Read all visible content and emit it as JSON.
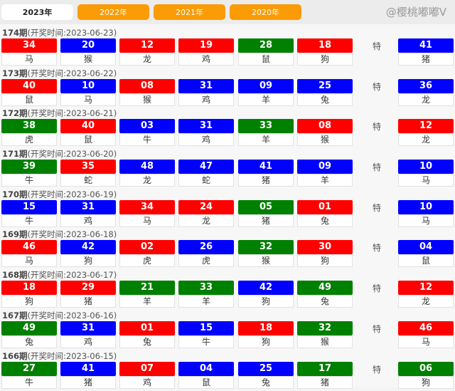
{
  "colors": {
    "red": "#ff0000",
    "blue": "#0000ff",
    "green": "#008000",
    "tab": "#fb9b05"
  },
  "tabs": [
    {
      "label": "2023年",
      "active": true
    },
    {
      "label": "2022年"
    },
    {
      "label": "2021年"
    },
    {
      "label": "2020年"
    }
  ],
  "special_label": "特",
  "watermark": "@樱桃嘟嘟V",
  "draws": [
    {
      "period": "174期",
      "time": "(开奖时间:2023-06-23)",
      "balls": [
        [
          "34",
          "red",
          "马"
        ],
        [
          "20",
          "blue",
          "猴"
        ],
        [
          "12",
          "red",
          "龙"
        ],
        [
          "19",
          "red",
          "鸡"
        ],
        [
          "28",
          "green",
          "鼠"
        ],
        [
          "18",
          "red",
          "狗"
        ]
      ],
      "special": [
        "41",
        "blue",
        "猪"
      ]
    },
    {
      "period": "173期",
      "time": "(开奖时间:2023-06-22)",
      "balls": [
        [
          "40",
          "red",
          "鼠"
        ],
        [
          "10",
          "blue",
          "马"
        ],
        [
          "08",
          "red",
          "猴"
        ],
        [
          "31",
          "blue",
          "鸡"
        ],
        [
          "09",
          "blue",
          "羊"
        ],
        [
          "25",
          "blue",
          "兔"
        ]
      ],
      "special": [
        "36",
        "blue",
        "龙"
      ]
    },
    {
      "period": "172期",
      "time": "(开奖时间:2023-06-21)",
      "balls": [
        [
          "38",
          "green",
          "虎"
        ],
        [
          "40",
          "red",
          "鼠"
        ],
        [
          "03",
          "blue",
          "牛"
        ],
        [
          "31",
          "blue",
          "鸡"
        ],
        [
          "33",
          "green",
          "羊"
        ],
        [
          "08",
          "red",
          "猴"
        ]
      ],
      "special": [
        "12",
        "red",
        "龙"
      ]
    },
    {
      "period": "171期",
      "time": "(开奖时间:2023-06-20)",
      "balls": [
        [
          "39",
          "green",
          "牛"
        ],
        [
          "35",
          "red",
          "蛇"
        ],
        [
          "48",
          "blue",
          "龙"
        ],
        [
          "47",
          "blue",
          "蛇"
        ],
        [
          "41",
          "blue",
          "猪"
        ],
        [
          "09",
          "blue",
          "羊"
        ]
      ],
      "special": [
        "10",
        "blue",
        "马"
      ]
    },
    {
      "period": "170期",
      "time": "(开奖时间:2023-06-19)",
      "balls": [
        [
          "15",
          "blue",
          "牛"
        ],
        [
          "31",
          "blue",
          "鸡"
        ],
        [
          "34",
          "red",
          "马"
        ],
        [
          "24",
          "red",
          "龙"
        ],
        [
          "05",
          "green",
          "猪"
        ],
        [
          "01",
          "red",
          "兔"
        ]
      ],
      "special": [
        "10",
        "blue",
        "马"
      ]
    },
    {
      "period": "169期",
      "time": "(开奖时间:2023-06-18)",
      "balls": [
        [
          "46",
          "red",
          "马"
        ],
        [
          "42",
          "blue",
          "狗"
        ],
        [
          "02",
          "red",
          "虎"
        ],
        [
          "26",
          "blue",
          "虎"
        ],
        [
          "32",
          "green",
          "猴"
        ],
        [
          "30",
          "red",
          "狗"
        ]
      ],
      "special": [
        "04",
        "blue",
        "鼠"
      ]
    },
    {
      "period": "168期",
      "time": "(开奖时间:2023-06-17)",
      "balls": [
        [
          "18",
          "red",
          "狗"
        ],
        [
          "29",
          "red",
          "猪"
        ],
        [
          "21",
          "green",
          "羊"
        ],
        [
          "33",
          "green",
          "羊"
        ],
        [
          "42",
          "blue",
          "狗"
        ],
        [
          "49",
          "green",
          "兔"
        ]
      ],
      "special": [
        "12",
        "red",
        "龙"
      ]
    },
    {
      "period": "167期",
      "time": "(开奖时间:2023-06-16)",
      "balls": [
        [
          "49",
          "green",
          "兔"
        ],
        [
          "31",
          "blue",
          "鸡"
        ],
        [
          "01",
          "red",
          "兔"
        ],
        [
          "15",
          "blue",
          "牛"
        ],
        [
          "18",
          "red",
          "狗"
        ],
        [
          "32",
          "green",
          "猴"
        ]
      ],
      "special": [
        "46",
        "red",
        "马"
      ]
    },
    {
      "period": "166期",
      "time": "(开奖时间:2023-06-15)",
      "balls": [
        [
          "27",
          "green",
          "牛"
        ],
        [
          "41",
          "blue",
          "猪"
        ],
        [
          "07",
          "red",
          "鸡"
        ],
        [
          "04",
          "blue",
          "鼠"
        ],
        [
          "25",
          "blue",
          "兔"
        ],
        [
          "17",
          "green",
          "猪"
        ]
      ],
      "special": [
        "06",
        "green",
        "狗"
      ]
    }
  ]
}
